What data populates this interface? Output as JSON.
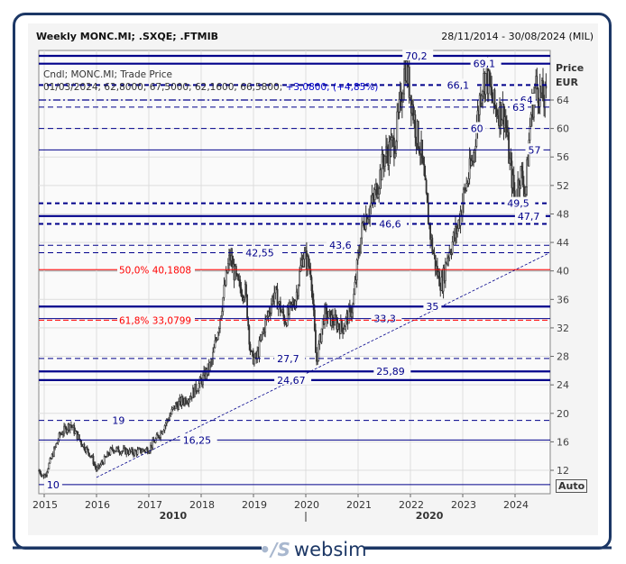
{
  "header": {
    "title": "Weekly MONC.MI; .SXQE; .FTMIB",
    "date_range": "28/11/2014 - 30/08/2024 (MIL)"
  },
  "legend": {
    "line1": "Cndl; MONC.MI; Trade Price",
    "line2_ohlc": "01/03/2024; 62,8000; 67,5000; 62,1600; 66,5800;",
    "line2_change": "+3,0800; (+4,85%)"
  },
  "axis": {
    "price_label": "Price",
    "currency_label": "EUR",
    "auto_button": "Auto",
    "decade_labels": [
      "2010",
      "2020"
    ]
  },
  "logo": {
    "text": "websim"
  },
  "colors": {
    "candle": "#333333",
    "levels": "#00008b",
    "fibonacci": "#ff0000",
    "grid": "#dddddd",
    "frame": "#1c3765"
  },
  "chart_data": {
    "type": "candlestick",
    "title": "Weekly MONC.MI; .SXQE; .FTMIB",
    "ylabel": "Price EUR",
    "ylim": [
      9,
      72
    ],
    "xlim": [
      2014.85,
      2024.7
    ],
    "y_ticks": [
      12,
      16,
      20,
      24,
      28,
      32,
      36,
      40,
      44,
      48,
      52,
      56,
      60,
      64
    ],
    "x_ticks": [
      "2015",
      "2016",
      "2017",
      "2018",
      "2019",
      "2020",
      "2021",
      "2022",
      "2023",
      "2024"
    ],
    "grid": true,
    "price_path": [
      [
        2014.9,
        12
      ],
      [
        2015.0,
        11
      ],
      [
        2015.15,
        14
      ],
      [
        2015.3,
        17
      ],
      [
        2015.5,
        18.5
      ],
      [
        2015.7,
        16
      ],
      [
        2015.9,
        14
      ],
      [
        2016.0,
        12
      ],
      [
        2016.3,
        15
      ],
      [
        2016.7,
        14.5
      ],
      [
        2017.0,
        15
      ],
      [
        2017.2,
        17
      ],
      [
        2017.5,
        21
      ],
      [
        2017.8,
        22.5
      ],
      [
        2018.0,
        24.5
      ],
      [
        2018.2,
        27
      ],
      [
        2018.35,
        33
      ],
      [
        2018.5,
        40
      ],
      [
        2018.55,
        42
      ],
      [
        2018.7,
        38
      ],
      [
        2018.85,
        37
      ],
      [
        2018.95,
        28
      ],
      [
        2019.05,
        27.5
      ],
      [
        2019.2,
        32
      ],
      [
        2019.4,
        37
      ],
      [
        2019.6,
        33
      ],
      [
        2019.8,
        36
      ],
      [
        2019.95,
        42.5
      ],
      [
        2020.1,
        40
      ],
      [
        2020.2,
        27
      ],
      [
        2020.35,
        34
      ],
      [
        2020.7,
        32
      ],
      [
        2020.9,
        35
      ],
      [
        2021.0,
        42
      ],
      [
        2021.1,
        47
      ],
      [
        2021.3,
        50
      ],
      [
        2021.5,
        56
      ],
      [
        2021.7,
        58
      ],
      [
        2021.8,
        63
      ],
      [
        2021.9,
        69
      ],
      [
        2022.0,
        65
      ],
      [
        2022.1,
        60
      ],
      [
        2022.2,
        57
      ],
      [
        2022.3,
        50
      ],
      [
        2022.4,
        44
      ],
      [
        2022.5,
        40
      ],
      [
        2022.6,
        38
      ],
      [
        2022.7,
        42
      ],
      [
        2022.9,
        46
      ],
      [
        2023.0,
        50
      ],
      [
        2023.2,
        56
      ],
      [
        2023.35,
        66
      ],
      [
        2023.45,
        67.5
      ],
      [
        2023.6,
        63
      ],
      [
        2023.8,
        62
      ],
      [
        2023.9,
        55
      ],
      [
        2024.0,
        50
      ],
      [
        2024.1,
        54
      ],
      [
        2024.2,
        51
      ],
      [
        2024.3,
        62
      ],
      [
        2024.4,
        66
      ],
      [
        2024.55,
        64
      ]
    ],
    "levels": [
      {
        "value": 70.2,
        "label": "70,2",
        "style": "solid-thick",
        "label_at": 2021.9
      },
      {
        "value": 69.1,
        "label": "69,1",
        "style": "solid-thick",
        "label_at": 2023.2
      },
      {
        "value": 66.1,
        "label": "66,1",
        "style": "dashed-thick",
        "label_at": 2022.7
      },
      {
        "value": 64,
        "label": "64",
        "style": "dashdot",
        "label_at": 2024.1
      },
      {
        "value": 63,
        "label": "63",
        "style": "dashed",
        "label_at": 2023.95
      },
      {
        "value": 60,
        "label": "60",
        "style": "dashed",
        "label_at": 2023.15
      },
      {
        "value": 57,
        "label": "57",
        "style": "solid",
        "label_at": 2024.25
      },
      {
        "value": 49.5,
        "label": "49,5",
        "style": "dashed-thick",
        "label_at": 2023.85
      },
      {
        "value": 47.7,
        "label": "47,7",
        "style": "solid-thick",
        "label_at": 2024.05
      },
      {
        "value": 46.6,
        "label": "46,6",
        "style": "dashed-thick",
        "label_at": 2021.4
      },
      {
        "value": 43.6,
        "label": "43,6",
        "style": "dashed",
        "label_at": 2020.45
      },
      {
        "value": 42.55,
        "label": "42,55",
        "style": "dashed",
        "label_at": 2018.85
      },
      {
        "value": 35,
        "label": "35",
        "style": "solid-thick",
        "label_at": 2022.3
      },
      {
        "value": 33.3,
        "label": "33,3",
        "style": "solid",
        "label_at": 2021.3
      },
      {
        "value": 27.7,
        "label": "27,7",
        "style": "dashed",
        "label_at": 2019.45
      },
      {
        "value": 25.89,
        "label": "25,89",
        "style": "solid-thick",
        "label_at": 2021.35
      },
      {
        "value": 24.67,
        "label": "24,67",
        "style": "solid-thick",
        "label_at": 2019.45
      },
      {
        "value": 19,
        "label": "19",
        "style": "dashed",
        "label_at": 2016.3
      },
      {
        "value": 16.25,
        "label": "16,25",
        "style": "solid",
        "label_at": 2017.65
      },
      {
        "value": 10,
        "label": "10",
        "style": "solid",
        "label_at": 2015.05
      }
    ],
    "fibonacci": [
      {
        "value": 40.1808,
        "label": "50,0%  40,1808",
        "style": "solid"
      },
      {
        "value": 33.0799,
        "label": "61,8%  33,0799",
        "style": "dashed"
      }
    ],
    "trendline": {
      "from": [
        2016.0,
        11
      ],
      "to": [
        2024.65,
        42.5
      ]
    }
  }
}
